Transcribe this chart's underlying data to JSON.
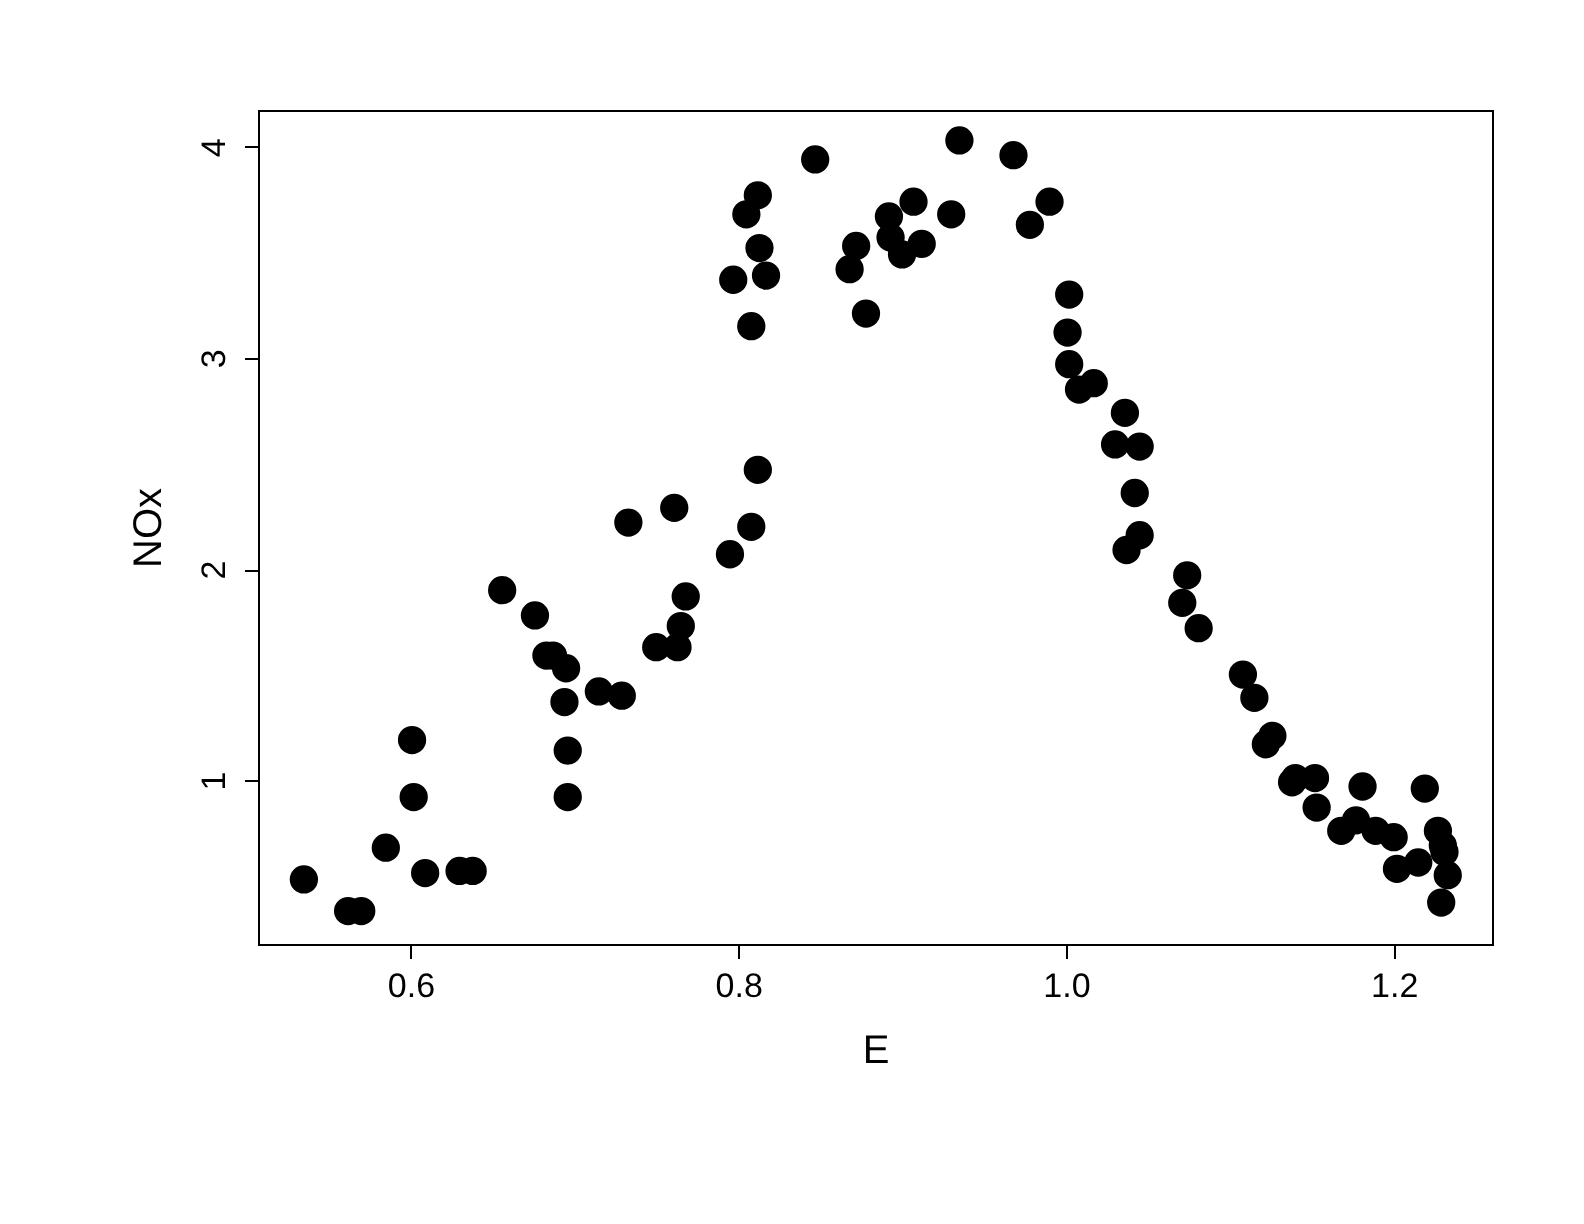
{
  "chart_data": {
    "type": "scatter",
    "xlabel": "E",
    "ylabel": "NOx",
    "marker": "circle",
    "grid": false,
    "xlim": [
      0.507,
      1.26
    ],
    "ylim": [
      0.224,
      4.174
    ],
    "xticks": [
      0.6,
      0.8,
      {
        "value": 1,
        "label": "1.0"
      },
      1.2
    ],
    "yticks": [
      1,
      2,
      3,
      4
    ],
    "series": [
      {
        "color": "#000000",
        "x": [
          0.535,
          0.562,
          0.57,
          0.585,
          0.601,
          0.602,
          0.609,
          0.63,
          0.638,
          0.656,
          0.676,
          0.683,
          0.687,
          0.695,
          0.694,
          0.696,
          0.696,
          0.715,
          0.729,
          0.733,
          0.761,
          0.75,
          0.763,
          0.765,
          0.768,
          0.795,
          0.808,
          0.812,
          0.847,
          0.812,
          0.805,
          0.813,
          0.797,
          0.817,
          0.808,
          0.872,
          0.868,
          0.878,
          0.935,
          0.968,
          0.892,
          0.907,
          0.893,
          0.9,
          0.912,
          0.93,
          0.99,
          0.978,
          1.002,
          1.001,
          1.002,
          1.008,
          1.017,
          1.036,
          1.03,
          1.045,
          1.042,
          1.045,
          1.037,
          1.074,
          1.071,
          1.081,
          1.108,
          1.115,
          1.122,
          1.126,
          1.14,
          1.152,
          1.138,
          1.153,
          1.181,
          1.219,
          1.168,
          1.177,
          1.189,
          1.2,
          1.202,
          1.215,
          1.227,
          1.231,
          1.233,
          1.229,
          1.23
        ],
        "values": [
          0.53,
          0.38,
          0.38,
          0.68,
          1.19,
          0.92,
          0.56,
          0.57,
          0.57,
          1.9,
          1.78,
          1.59,
          1.59,
          1.53,
          1.37,
          1.14,
          0.92,
          1.42,
          1.4,
          2.22,
          2.29,
          1.63,
          1.63,
          1.73,
          1.87,
          2.07,
          2.2,
          2.47,
          3.94,
          3.77,
          3.68,
          3.52,
          3.37,
          3.39,
          3.15,
          3.53,
          3.42,
          3.21,
          4.03,
          3.96,
          3.67,
          3.74,
          3.57,
          3.49,
          3.54,
          3.68,
          3.74,
          3.63,
          3.3,
          3.12,
          2.97,
          2.85,
          2.88,
          2.74,
          2.59,
          2.58,
          2.36,
          2.16,
          2.09,
          1.97,
          1.84,
          1.72,
          1.5,
          1.39,
          1.17,
          1.21,
          1.01,
          1.01,
          0.99,
          0.87,
          0.97,
          0.96,
          0.76,
          0.81,
          0.76,
          0.73,
          0.58,
          0.61,
          0.76,
          0.66,
          0.55,
          0.42,
          0.69
        ]
      }
    ]
  }
}
